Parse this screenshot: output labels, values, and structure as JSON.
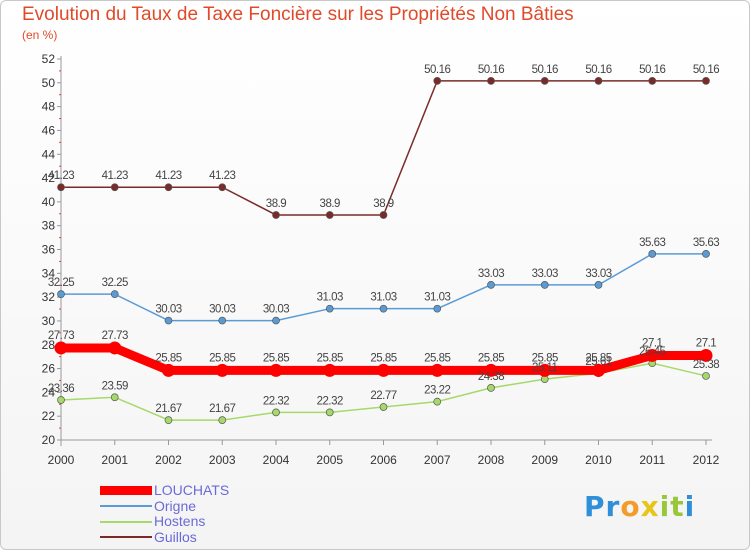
{
  "header": {
    "title": "Evolution du Taux de Taxe Foncière sur les Propriétés Non Bâties",
    "unit": "(en %)"
  },
  "logo": {
    "text": "Proxiti",
    "letters": [
      {
        "ch": "P",
        "color": "#2f8fd8"
      },
      {
        "ch": "r",
        "color": "#2f8fd8"
      },
      {
        "ch": "o",
        "color": "#f39c2a"
      },
      {
        "ch": "x",
        "color": "#e8c51a"
      },
      {
        "ch": "i",
        "color": "#9ac63a"
      },
      {
        "ch": "t",
        "color": "#9ac63a"
      },
      {
        "ch": "i",
        "color": "#2f8fd8"
      }
    ]
  },
  "chart_data": {
    "type": "line",
    "title": "Evolution du Taux de Taxe Foncière sur les Propriétés Non Bâties",
    "xlabel": "",
    "ylabel": "(en %)",
    "x": [
      "2000",
      "2001",
      "2002",
      "2003",
      "2004",
      "2005",
      "2006",
      "2007",
      "2008",
      "2009",
      "2010",
      "2011",
      "2012"
    ],
    "ylim": [
      20,
      52
    ],
    "yticks": [
      20,
      22,
      24,
      26,
      28,
      30,
      32,
      34,
      36,
      38,
      40,
      42,
      44,
      46,
      48,
      50,
      52
    ],
    "grid": false,
    "legend_position": "bottom-left",
    "series": [
      {
        "name": "LOUCHATS",
        "color": "#ff0000",
        "values": [
          27.73,
          27.73,
          25.85,
          25.85,
          25.85,
          25.85,
          25.85,
          25.85,
          25.85,
          25.85,
          25.85,
          27.1,
          27.1
        ],
        "labels": [
          "27.73",
          "27.73",
          "25.85",
          "25.85",
          "25.85",
          "25.85",
          "25.85",
          "25.85",
          "25.85",
          "25.85",
          "25.85",
          "27.1",
          "27.1"
        ]
      },
      {
        "name": "Origne",
        "color": "#5b9bd5",
        "values": [
          32.25,
          32.25,
          30.03,
          30.03,
          30.03,
          31.03,
          31.03,
          31.03,
          33.03,
          33.03,
          33.03,
          35.63,
          35.63
        ],
        "labels": [
          "32.25",
          "32.25",
          "30.03",
          "30.03",
          "30.03",
          "31.03",
          "31.03",
          "31.03",
          "33.03",
          "33.03",
          "33.03",
          "35.63",
          "35.63"
        ]
      },
      {
        "name": "Hostens",
        "color": "#a6d96a",
        "values": [
          23.36,
          23.59,
          21.67,
          21.67,
          22.32,
          22.32,
          22.77,
          23.22,
          24.38,
          25.11,
          25.61,
          26.45,
          25.38
        ],
        "labels": [
          "23.36",
          "23.59",
          "21.67",
          "21.67",
          "22.32",
          "22.32",
          "22.77",
          "23.22",
          "24.38",
          "25.11",
          "25.61",
          "26.45",
          "25.38"
        ]
      },
      {
        "name": "Guillos",
        "color": "#7b2a2a",
        "values": [
          41.23,
          41.23,
          41.23,
          41.23,
          38.9,
          38.9,
          38.9,
          50.16,
          50.16,
          50.16,
          50.16,
          50.16,
          50.16
        ],
        "labels": [
          "41.23",
          "41.23",
          "41.23",
          "41.23",
          "38.9",
          "38.9",
          "38.9",
          "50.16",
          "50.16",
          "50.16",
          "50.16",
          "50.16",
          "50.16"
        ]
      }
    ]
  }
}
